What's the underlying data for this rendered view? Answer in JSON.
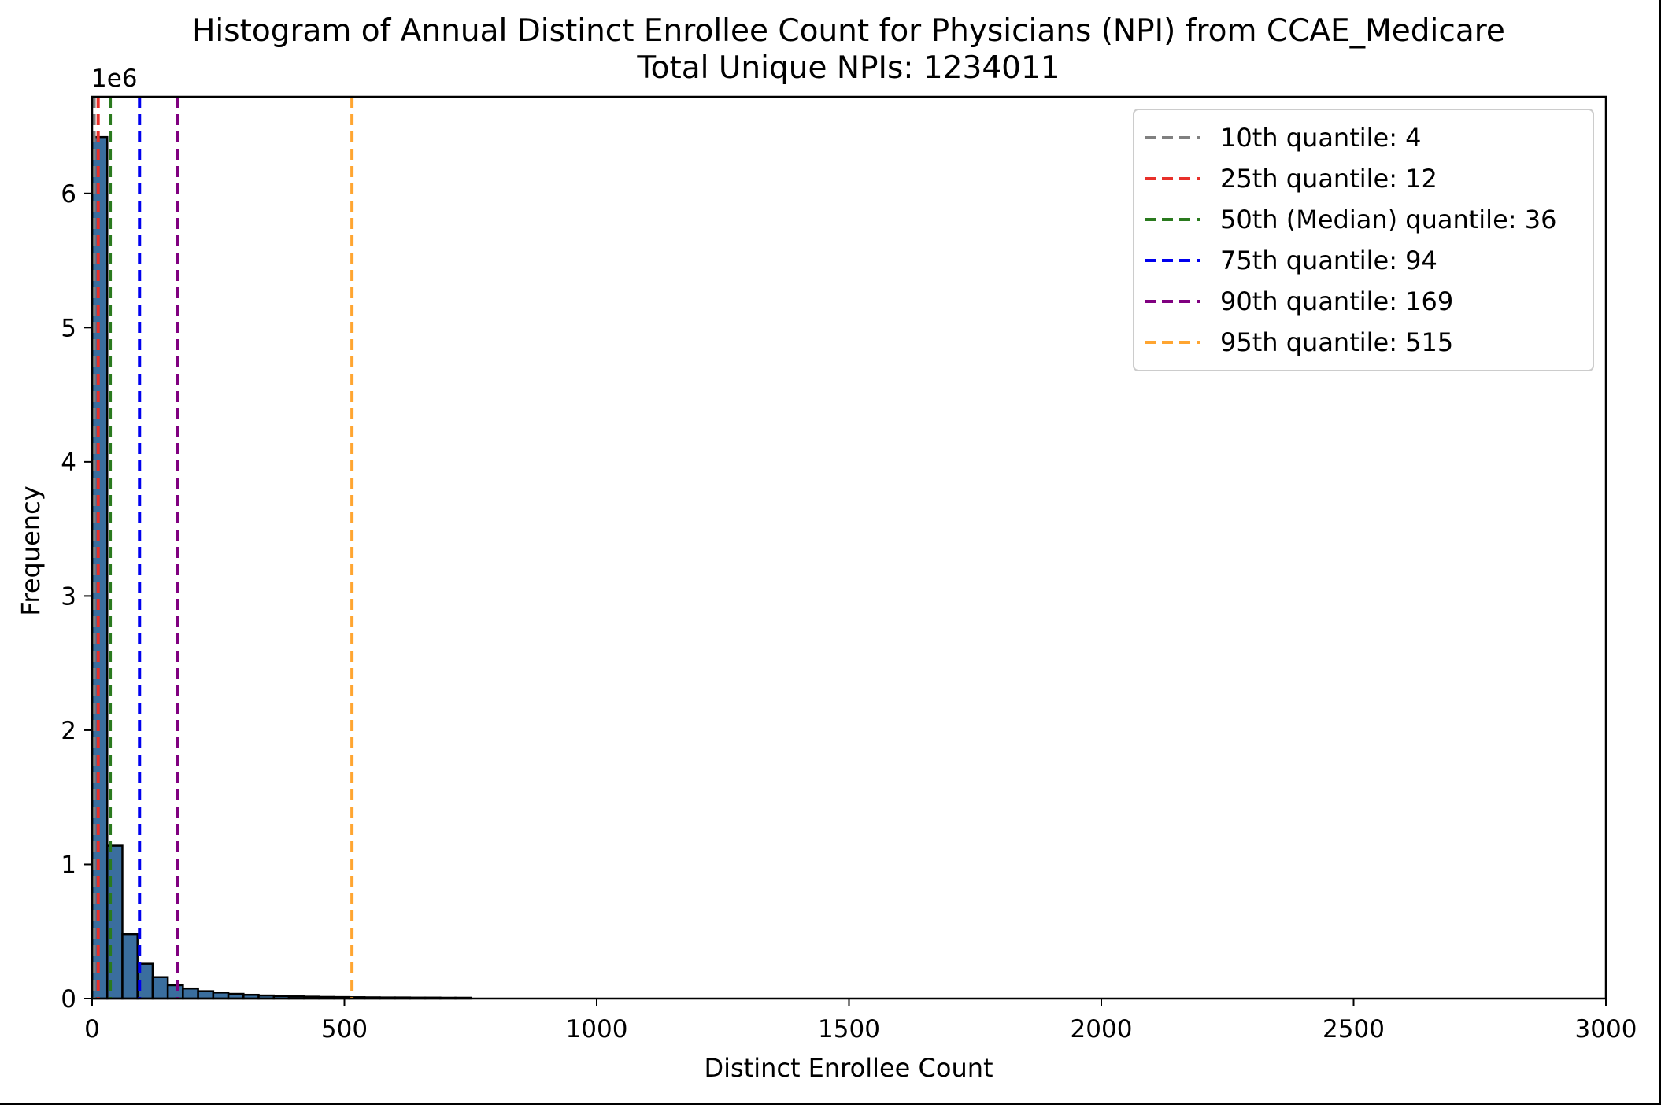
{
  "chart_data": {
    "type": "bar",
    "title": "Histogram of Annual Distinct Enrollee Count for Physicians (NPI) from CCAE_Medicare",
    "subtitle": "Total Unique NPIs: 1234011",
    "xlabel": "Distinct Enrollee Count",
    "ylabel": "Frequency",
    "y_offset_label": "1e6",
    "xlim": [
      0,
      3000
    ],
    "ylim": [
      0,
      6.72
    ],
    "x_ticks": [
      "0",
      "500",
      "1000",
      "1500",
      "2000",
      "2500",
      "3000"
    ],
    "y_ticks": [
      "0",
      "1",
      "2",
      "3",
      "4",
      "5",
      "6"
    ],
    "grid": false,
    "legend_position": "top-right",
    "bar_color": "#3a6e9e",
    "bin_width": 30,
    "bin_starts": [
      0,
      30,
      60,
      90,
      120,
      150,
      180,
      210,
      240,
      270,
      300,
      330,
      360,
      390,
      420,
      450,
      480,
      510,
      540,
      570,
      600,
      630,
      660,
      690,
      720
    ],
    "values": [
      6.42,
      1.14,
      0.48,
      0.26,
      0.16,
      0.1,
      0.075,
      0.055,
      0.045,
      0.035,
      0.028,
      0.023,
      0.019,
      0.016,
      0.014,
      0.012,
      0.011,
      0.01,
      0.009,
      0.008,
      0.008,
      0.007,
      0.007,
      0.006,
      0.006
    ],
    "quantiles": [
      {
        "label": "10th quantile: 4",
        "x": 4,
        "color": "#808080"
      },
      {
        "label": "25th quantile: 12",
        "x": 12,
        "color": "#e8302a"
      },
      {
        "label": "50th (Median) quantile: 36",
        "x": 36,
        "color": "#2a7a1e"
      },
      {
        "label": "75th quantile: 94",
        "x": 94,
        "color": "#0000ee"
      },
      {
        "label": "90th quantile: 169",
        "x": 169,
        "color": "#800080"
      },
      {
        "label": "95th quantile: 515",
        "x": 515,
        "color": "#ffa531"
      }
    ]
  }
}
